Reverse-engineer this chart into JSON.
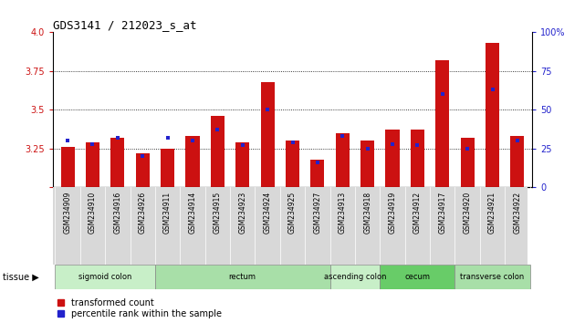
{
  "title": "GDS3141 / 212023_s_at",
  "samples": [
    "GSM234909",
    "GSM234910",
    "GSM234916",
    "GSM234926",
    "GSM234911",
    "GSM234914",
    "GSM234915",
    "GSM234923",
    "GSM234924",
    "GSM234925",
    "GSM234927",
    "GSM234913",
    "GSM234918",
    "GSM234919",
    "GSM234912",
    "GSM234917",
    "GSM234920",
    "GSM234921",
    "GSM234922"
  ],
  "red_values": [
    3.26,
    3.29,
    3.32,
    3.22,
    3.25,
    3.33,
    3.46,
    3.29,
    3.68,
    3.3,
    3.18,
    3.35,
    3.3,
    3.37,
    3.37,
    3.82,
    3.32,
    3.93,
    3.33
  ],
  "blue_values": [
    30,
    28,
    32,
    20,
    32,
    30,
    37,
    27,
    50,
    29,
    16,
    33,
    25,
    28,
    27,
    60,
    25,
    63,
    30
  ],
  "tissue_groups": [
    {
      "label": "sigmoid colon",
      "start": 0,
      "end": 4,
      "color": "#c8efc8"
    },
    {
      "label": "rectum",
      "start": 4,
      "end": 11,
      "color": "#a8dfa8"
    },
    {
      "label": "ascending colon",
      "start": 11,
      "end": 13,
      "color": "#c8efc8"
    },
    {
      "label": "cecum",
      "start": 13,
      "end": 16,
      "color": "#68cc68"
    },
    {
      "label": "transverse colon",
      "start": 16,
      "end": 19,
      "color": "#a8dfa8"
    }
  ],
  "y_min": 3.0,
  "y_max": 4.0,
  "y_ticks": [
    3.0,
    3.25,
    3.5,
    3.75,
    4.0
  ],
  "y2_ticks": [
    0,
    25,
    50,
    75,
    100
  ],
  "bar_color": "#cc1111",
  "blue_color": "#2222cc",
  "bar_width": 0.55,
  "legend_red": "transformed count",
  "legend_blue": "percentile rank within the sample",
  "tissue_label": "tissue"
}
